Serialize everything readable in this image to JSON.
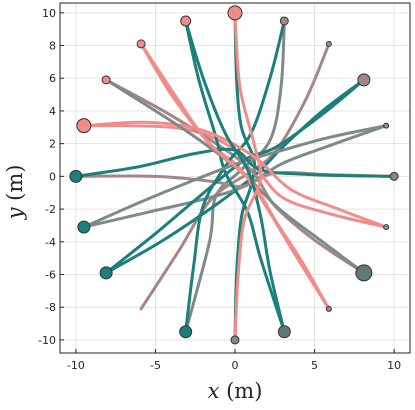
{
  "chart_data": {
    "type": "line",
    "title": "",
    "xlabel": {
      "var": "x",
      "unit": " (m)"
    },
    "ylabel": {
      "var": "y",
      "unit": " (m)"
    },
    "xlim": [
      -11,
      11
    ],
    "ylim": [
      -10.8,
      10.6
    ],
    "xticks": [
      -10,
      -5,
      0,
      5,
      10
    ],
    "yticks": [
      -10,
      -8,
      -6,
      -4,
      -2,
      0,
      2,
      4,
      6,
      8,
      10
    ],
    "xtick_labels": [
      "-10",
      "-5",
      "0",
      "5",
      "10"
    ],
    "ytick_labels": [
      "-10",
      "-8",
      "-6",
      "-4",
      "-2",
      "0",
      "2",
      "4",
      "6",
      "8",
      "10"
    ],
    "grid": true,
    "colors": {
      "teal": "#1b7f7b",
      "salmon": "#f28c8a",
      "mauve": "#a58686",
      "grey": "#7d8a87",
      "slate": "#5f7a76"
    },
    "series": [
      {
        "start": [
          0,
          10
        ],
        "end": [
          0,
          -10
        ],
        "color": "#1b7f7b",
        "marker_size": 7,
        "start_marker": "#f28c8a",
        "end_marker": "#5f7a76",
        "path": [
          [
            0,
            10
          ],
          [
            0.1,
            6
          ],
          [
            0.4,
            3
          ],
          [
            1.2,
            1.0
          ],
          [
            1.0,
            -0.6
          ],
          [
            0.4,
            -2.5
          ],
          [
            0.1,
            -6
          ],
          [
            0,
            -10
          ]
        ]
      },
      {
        "start": [
          3.1,
          9.5
        ],
        "end": [
          -3.1,
          -9.5
        ],
        "color": "#7d8a87",
        "marker_size": 4,
        "start_marker": "#a58686",
        "end_marker": "#1b7f7b",
        "path": [
          [
            3.1,
            9.5
          ],
          [
            2.9,
            5.5
          ],
          [
            2.2,
            2.2
          ],
          [
            0.4,
            0.4
          ],
          [
            -1.2,
            -1.2
          ],
          [
            -1.6,
            -4
          ],
          [
            -3.1,
            -9.5
          ]
        ]
      },
      {
        "start": [
          5.9,
          8.1
        ],
        "end": [
          -5.9,
          -8.1
        ],
        "color": "#a58686",
        "marker_size": 2.5,
        "start_marker": "#a58686",
        "end_marker": "#7d8a87",
        "path": [
          [
            5.9,
            8.1
          ],
          [
            4.5,
            4.8
          ],
          [
            2.6,
            1.6
          ],
          [
            1.0,
            0.3
          ],
          [
            -1.5,
            -1.4
          ],
          [
            -3.5,
            -4.5
          ],
          [
            -5.9,
            -8.1
          ]
        ]
      },
      {
        "start": [
          8.1,
          5.9
        ],
        "end": [
          -8.1,
          -5.9
        ],
        "color": "#1b7f7b",
        "marker_size": 6,
        "start_marker": "#a58686",
        "end_marker": "#1b7f7b",
        "path": [
          [
            8.1,
            5.9
          ],
          [
            5.5,
            4.0
          ],
          [
            3.0,
            1.8
          ],
          [
            1.4,
            0.2
          ],
          [
            -1.0,
            -1.6
          ],
          [
            -4.5,
            -3.9
          ],
          [
            -8.1,
            -5.9
          ]
        ]
      },
      {
        "start": [
          9.5,
          3.1
        ],
        "end": [
          -9.5,
          -3.1
        ],
        "color": "#7d8a87",
        "marker_size": 2.5,
        "start_marker": "#a58686",
        "end_marker": "#1b7f7b",
        "path": [
          [
            9.5,
            3.1
          ],
          [
            6.0,
            1.9
          ],
          [
            3.0,
            0.8
          ],
          [
            0.6,
            -0.6
          ],
          [
            -2.0,
            -1.4
          ],
          [
            -5.5,
            -2.2
          ],
          [
            -9.5,
            -3.1
          ]
        ]
      },
      {
        "start": [
          10,
          0
        ],
        "end": [
          -10,
          0
        ],
        "color": "#a58686",
        "marker_size": 4,
        "start_marker": "#7d8a87",
        "end_marker": "#1b7f7b",
        "path": [
          [
            10,
            0
          ],
          [
            6,
            0.1
          ],
          [
            2.5,
            0.2
          ],
          [
            0.5,
            -0.6
          ],
          [
            -1.5,
            -0.3
          ],
          [
            -5,
            0.0
          ],
          [
            -10,
            0
          ]
        ]
      },
      {
        "start": [
          9.5,
          -3.1
        ],
        "end": [
          -9.5,
          3.1
        ],
        "color": "#f28c8a",
        "marker_size": 2.5,
        "start_marker": "#a58686",
        "end_marker": "#f28c8a",
        "path": [
          [
            9.5,
            -3.1
          ],
          [
            6,
            -2.3
          ],
          [
            3,
            -1.3
          ],
          [
            1.2,
            0.6
          ],
          [
            -1,
            2.2
          ],
          [
            -4,
            3.0
          ],
          [
            -9.5,
            3.1
          ]
        ]
      },
      {
        "start": [
          8.1,
          -5.9
        ],
        "end": [
          -8.1,
          5.9
        ],
        "color": "#a58686",
        "marker_size": 8,
        "start_marker": "#5f7a76",
        "end_marker": "#f28c8a",
        "path": [
          [
            8.1,
            -5.9
          ],
          [
            5,
            -3.9
          ],
          [
            2.5,
            -1.8
          ],
          [
            1.0,
            0.4
          ],
          [
            -1.5,
            2.2
          ],
          [
            -4.5,
            4.0
          ],
          [
            -8.1,
            5.9
          ]
        ]
      },
      {
        "start": [
          5.9,
          -8.1
        ],
        "end": [
          -5.9,
          8.1
        ],
        "color": "#f28c8a",
        "marker_size": 2.5,
        "start_marker": "#a58686",
        "end_marker": "#f28c8a",
        "path": [
          [
            5.9,
            -8.1
          ],
          [
            3.6,
            -4.5
          ],
          [
            1.8,
            -1.6
          ],
          [
            0.2,
            0.6
          ],
          [
            -1.8,
            2.2
          ],
          [
            -3.8,
            5.0
          ],
          [
            -5.9,
            8.1
          ]
        ]
      },
      {
        "start": [
          3.1,
          -9.5
        ],
        "end": [
          -3.1,
          9.5
        ],
        "color": "#1b7f7b",
        "marker_size": 6,
        "start_marker": "#5f7a76",
        "end_marker": "#f28c8a",
        "path": [
          [
            3.1,
            -9.5
          ],
          [
            1.6,
            -5
          ],
          [
            0.8,
            -2.2
          ],
          [
            -0.6,
            0.2
          ],
          [
            -1.2,
            2.4
          ],
          [
            -2.3,
            6
          ],
          [
            -3.1,
            9.5
          ]
        ]
      },
      {
        "start": [
          -3.1,
          -9.5
        ],
        "end": [
          3.1,
          9.5
        ],
        "color": "#1b7f7b",
        "marker_size": 6,
        "start_marker": "#1b7f7b",
        "end_marker": "#a58686",
        "path": [
          [
            -3.1,
            -9.5
          ],
          [
            -2.6,
            -5.5
          ],
          [
            -2.0,
            -1.8
          ],
          [
            -0.4,
            0.9
          ],
          [
            1.0,
            2.6
          ],
          [
            2.2,
            6.0
          ],
          [
            3.1,
            9.5
          ]
        ]
      },
      {
        "start": [
          -8.1,
          -5.9
        ],
        "end": [
          8.1,
          5.9
        ],
        "color": "#1b7f7b",
        "marker_size": 6,
        "start_marker": "#1b7f7b",
        "end_marker": "#a58686",
        "path": [
          [
            -8.1,
            -5.9
          ],
          [
            -5,
            -3.5
          ],
          [
            -2.2,
            -1.2
          ],
          [
            0.6,
            1.0
          ],
          [
            2.6,
            1.8
          ],
          [
            5.5,
            3.8
          ],
          [
            8.1,
            5.9
          ]
        ]
      },
      {
        "start": [
          -9.5,
          -3.1
        ],
        "end": [
          9.5,
          3.1
        ],
        "color": "#7d8a87",
        "marker_size": 6,
        "start_marker": "#1b7f7b",
        "end_marker": "#7d8a87",
        "path": [
          [
            -9.5,
            -3.1
          ],
          [
            -6,
            -1.6
          ],
          [
            -2.5,
            -0.2
          ],
          [
            0.5,
            0.9
          ],
          [
            3.0,
            1.6
          ],
          [
            6,
            2.4
          ],
          [
            9.5,
            3.1
          ]
        ]
      },
      {
        "start": [
          -10,
          0
        ],
        "end": [
          10,
          0
        ],
        "color": "#1b7f7b",
        "marker_size": 6,
        "start_marker": "#1b7f7b",
        "end_marker": "#7d8a87",
        "path": [
          [
            -10,
            0
          ],
          [
            -6,
            0.6
          ],
          [
            -2.5,
            1.4
          ],
          [
            0,
            1.6
          ],
          [
            1.6,
            0.4
          ],
          [
            5,
            0.1
          ],
          [
            10,
            0
          ]
        ]
      },
      {
        "start": [
          -9.5,
          3.1
        ],
        "end": [
          9.5,
          -3.1
        ],
        "color": "#f28c8a",
        "marker_size": 7,
        "start_marker": "#f28c8a",
        "end_marker": "#7d8a87",
        "path": [
          [
            -9.5,
            3.1
          ],
          [
            -5.5,
            3.3
          ],
          [
            -2.0,
            2.8
          ],
          [
            1.2,
            1.2
          ],
          [
            3.5,
            -0.8
          ],
          [
            6.5,
            -2.0
          ],
          [
            9.5,
            -3.1
          ]
        ]
      },
      {
        "start": [
          -8.1,
          5.9
        ],
        "end": [
          8.1,
          -5.9
        ],
        "color": "#7d8a87",
        "marker_size": 4,
        "start_marker": "#f28c8a",
        "end_marker": "#5f7a76",
        "path": [
          [
            -8.1,
            5.9
          ],
          [
            -5,
            4.0
          ],
          [
            -2.2,
            2.2
          ],
          [
            0.6,
            0.1
          ],
          [
            2.8,
            -2.0
          ],
          [
            5.5,
            -4.0
          ],
          [
            8.1,
            -5.9
          ]
        ]
      },
      {
        "start": [
          -5.9,
          8.1
        ],
        "end": [
          5.9,
          -8.1
        ],
        "color": "#f28c8a",
        "marker_size": 4,
        "start_marker": "#f28c8a",
        "end_marker": "#a58686",
        "path": [
          [
            -5.9,
            8.1
          ],
          [
            -4.0,
            5.0
          ],
          [
            -1.6,
            2.0
          ],
          [
            1.0,
            -0.3
          ],
          [
            2.6,
            -2.8
          ],
          [
            4.2,
            -5.2
          ],
          [
            5.9,
            -8.1
          ]
        ]
      },
      {
        "start": [
          -3.1,
          9.5
        ],
        "end": [
          3.1,
          -9.5
        ],
        "color": "#1b7f7b",
        "marker_size": 5,
        "start_marker": "#f28c8a",
        "end_marker": "#7d8a87",
        "path": [
          [
            -3.1,
            9.5
          ],
          [
            -2.0,
            6.0
          ],
          [
            -0.6,
            2.6
          ],
          [
            0.8,
            0.4
          ],
          [
            1.6,
            -2.4
          ],
          [
            2.2,
            -5.8
          ],
          [
            3.1,
            -9.5
          ]
        ]
      },
      {
        "start": [
          0,
          -10
        ],
        "end": [
          0,
          10
        ],
        "color": "#f28c8a",
        "marker_size": 4,
        "start_marker": "#7d8a87",
        "end_marker": "#f28c8a",
        "path": [
          [
            0,
            -10
          ],
          [
            0.2,
            -6
          ],
          [
            0.6,
            -2.6
          ],
          [
            1.6,
            -0.2
          ],
          [
            1.2,
            2.0
          ],
          [
            0.3,
            5.5
          ],
          [
            0,
            10
          ]
        ]
      }
    ]
  }
}
